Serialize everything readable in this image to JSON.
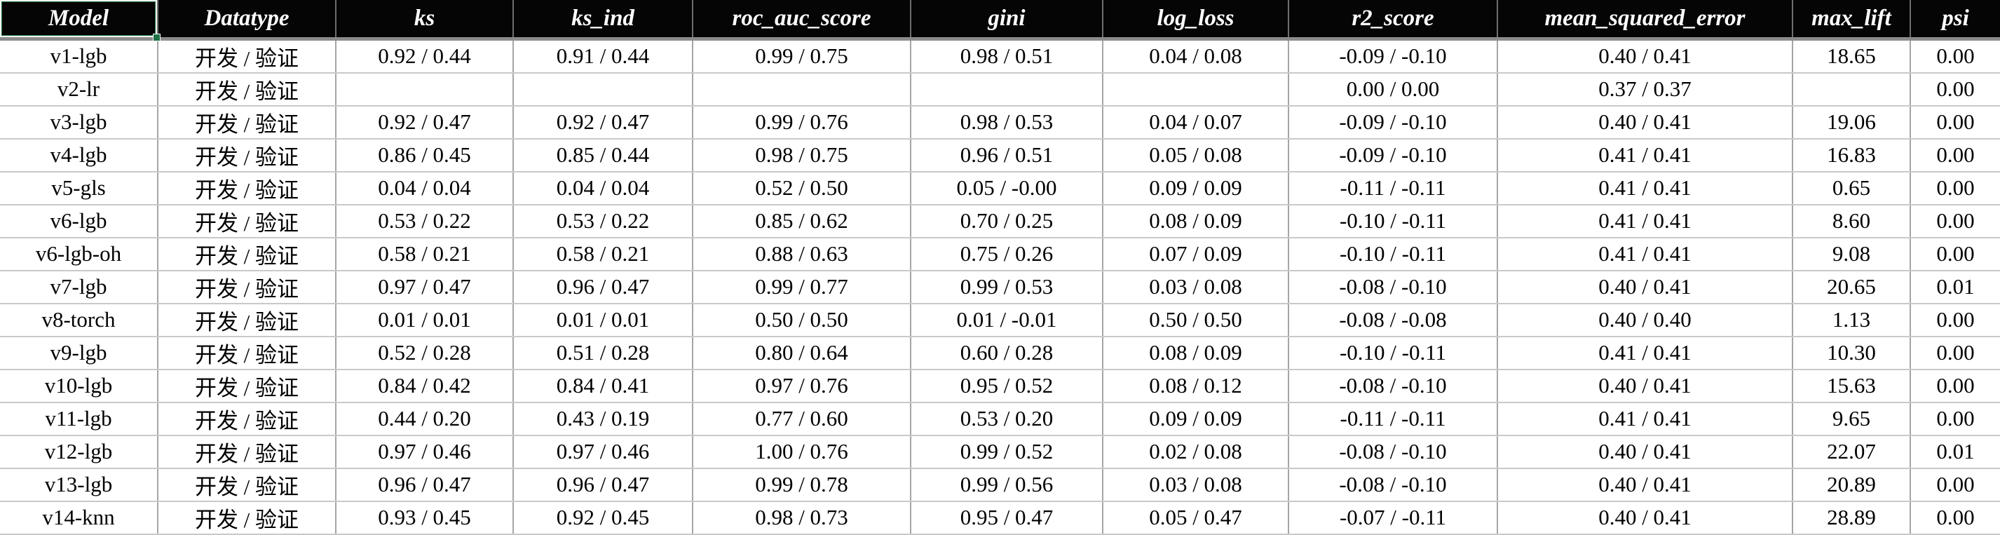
{
  "colors": {
    "header_background": "#000000",
    "header_text": "#ffffff",
    "cell_text": "#000000",
    "grid_vertical": "#a5a5a5",
    "grid_horizontal": "#c9c9c9",
    "header_bottom_border": "#8c8c8c",
    "selection_green": "#1e7145"
  },
  "table": {
    "selected_header": "Model",
    "columns": [
      {
        "key": "model",
        "label": "Model"
      },
      {
        "key": "datatype",
        "label": "Datatype"
      },
      {
        "key": "ks",
        "label": "ks"
      },
      {
        "key": "ks_ind",
        "label": "ks_ind"
      },
      {
        "key": "roc_auc_score",
        "label": "roc_auc_score"
      },
      {
        "key": "gini",
        "label": "gini"
      },
      {
        "key": "log_loss",
        "label": "log_loss"
      },
      {
        "key": "r2_score",
        "label": "r2_score"
      },
      {
        "key": "mean_squared_error",
        "label": "mean_squared_error"
      },
      {
        "key": "max_lift",
        "label": "max_lift"
      },
      {
        "key": "psi",
        "label": "psi"
      }
    ],
    "rows": [
      {
        "model": "v1-lgb",
        "datatype": "开发 / 验证",
        "ks": "0.92 / 0.44",
        "ks_ind": "0.91 / 0.44",
        "roc_auc_score": "0.99 / 0.75",
        "gini": "0.98 / 0.51",
        "log_loss": "0.04 / 0.08",
        "r2_score": "-0.09 / -0.10",
        "mean_squared_error": "0.40 / 0.41",
        "max_lift": "18.65",
        "psi": "0.00"
      },
      {
        "model": "v2-lr",
        "datatype": "开发 / 验证",
        "ks": "",
        "ks_ind": "",
        "roc_auc_score": "",
        "gini": "",
        "log_loss": "",
        "r2_score": "0.00 / 0.00",
        "mean_squared_error": "0.37 / 0.37",
        "max_lift": "",
        "psi": "0.00"
      },
      {
        "model": "v3-lgb",
        "datatype": "开发 / 验证",
        "ks": "0.92 / 0.47",
        "ks_ind": "0.92 / 0.47",
        "roc_auc_score": "0.99 / 0.76",
        "gini": "0.98 / 0.53",
        "log_loss": "0.04 / 0.07",
        "r2_score": "-0.09 / -0.10",
        "mean_squared_error": "0.40 / 0.41",
        "max_lift": "19.06",
        "psi": "0.00"
      },
      {
        "model": "v4-lgb",
        "datatype": "开发 / 验证",
        "ks": "0.86 / 0.45",
        "ks_ind": "0.85 / 0.44",
        "roc_auc_score": "0.98 / 0.75",
        "gini": "0.96 / 0.51",
        "log_loss": "0.05 / 0.08",
        "r2_score": "-0.09 / -0.10",
        "mean_squared_error": "0.41 / 0.41",
        "max_lift": "16.83",
        "psi": "0.00"
      },
      {
        "model": "v5-gls",
        "datatype": "开发 / 验证",
        "ks": "0.04 / 0.04",
        "ks_ind": "0.04 / 0.04",
        "roc_auc_score": "0.52 / 0.50",
        "gini": "0.05 / -0.00",
        "log_loss": "0.09 / 0.09",
        "r2_score": "-0.11 / -0.11",
        "mean_squared_error": "0.41 / 0.41",
        "max_lift": "0.65",
        "psi": "0.00"
      },
      {
        "model": "v6-lgb",
        "datatype": "开发 / 验证",
        "ks": "0.53 / 0.22",
        "ks_ind": "0.53 / 0.22",
        "roc_auc_score": "0.85 / 0.62",
        "gini": "0.70 / 0.25",
        "log_loss": "0.08 / 0.09",
        "r2_score": "-0.10 / -0.11",
        "mean_squared_error": "0.41 / 0.41",
        "max_lift": "8.60",
        "psi": "0.00"
      },
      {
        "model": "v6-lgb-oh",
        "datatype": "开发 / 验证",
        "ks": "0.58 / 0.21",
        "ks_ind": "0.58 / 0.21",
        "roc_auc_score": "0.88 / 0.63",
        "gini": "0.75 / 0.26",
        "log_loss": "0.07 / 0.09",
        "r2_score": "-0.10 / -0.11",
        "mean_squared_error": "0.41 / 0.41",
        "max_lift": "9.08",
        "psi": "0.00"
      },
      {
        "model": "v7-lgb",
        "datatype": "开发 / 验证",
        "ks": "0.97 / 0.47",
        "ks_ind": "0.96 / 0.47",
        "roc_auc_score": "0.99 / 0.77",
        "gini": "0.99 / 0.53",
        "log_loss": "0.03 / 0.08",
        "r2_score": "-0.08 / -0.10",
        "mean_squared_error": "0.40 / 0.41",
        "max_lift": "20.65",
        "psi": "0.01"
      },
      {
        "model": "v8-torch",
        "datatype": "开发 / 验证",
        "ks": "0.01 / 0.01",
        "ks_ind": "0.01 / 0.01",
        "roc_auc_score": "0.50 / 0.50",
        "gini": "0.01 / -0.01",
        "log_loss": "0.50 / 0.50",
        "r2_score": "-0.08 / -0.08",
        "mean_squared_error": "0.40 / 0.40",
        "max_lift": "1.13",
        "psi": "0.00"
      },
      {
        "model": "v9-lgb",
        "datatype": "开发 / 验证",
        "ks": "0.52 / 0.28",
        "ks_ind": "0.51 / 0.28",
        "roc_auc_score": "0.80 / 0.64",
        "gini": "0.60 / 0.28",
        "log_loss": "0.08 / 0.09",
        "r2_score": "-0.10 / -0.11",
        "mean_squared_error": "0.41 / 0.41",
        "max_lift": "10.30",
        "psi": "0.00"
      },
      {
        "model": "v10-lgb",
        "datatype": "开发 / 验证",
        "ks": "0.84 / 0.42",
        "ks_ind": "0.84 / 0.41",
        "roc_auc_score": "0.97 / 0.76",
        "gini": "0.95 / 0.52",
        "log_loss": "0.08 / 0.12",
        "r2_score": "-0.08 / -0.10",
        "mean_squared_error": "0.40 / 0.41",
        "max_lift": "15.63",
        "psi": "0.00"
      },
      {
        "model": "v11-lgb",
        "datatype": "开发 / 验证",
        "ks": "0.44 / 0.20",
        "ks_ind": "0.43 / 0.19",
        "roc_auc_score": "0.77 / 0.60",
        "gini": "0.53 / 0.20",
        "log_loss": "0.09 / 0.09",
        "r2_score": "-0.11 / -0.11",
        "mean_squared_error": "0.41 / 0.41",
        "max_lift": "9.65",
        "psi": "0.00"
      },
      {
        "model": "v12-lgb",
        "datatype": "开发 / 验证",
        "ks": "0.97 / 0.46",
        "ks_ind": "0.97 / 0.46",
        "roc_auc_score": "1.00 / 0.76",
        "gini": "0.99 / 0.52",
        "log_loss": "0.02 / 0.08",
        "r2_score": "-0.08 / -0.10",
        "mean_squared_error": "0.40 / 0.41",
        "max_lift": "22.07",
        "psi": "0.01"
      },
      {
        "model": "v13-lgb",
        "datatype": "开发 / 验证",
        "ks": "0.96 / 0.47",
        "ks_ind": "0.96 / 0.47",
        "roc_auc_score": "0.99 / 0.78",
        "gini": "0.99 / 0.56",
        "log_loss": "0.03 / 0.08",
        "r2_score": "-0.08 / -0.10",
        "mean_squared_error": "0.40 / 0.41",
        "max_lift": "20.89",
        "psi": "0.00"
      },
      {
        "model": "v14-knn",
        "datatype": "开发 / 验证",
        "ks": "0.93 / 0.45",
        "ks_ind": "0.92 / 0.45",
        "roc_auc_score": "0.98 / 0.73",
        "gini": "0.95 / 0.47",
        "log_loss": "0.05 / 0.47",
        "r2_score": "-0.07 / -0.11",
        "mean_squared_error": "0.40 / 0.41",
        "max_lift": "28.89",
        "psi": "0.00"
      }
    ]
  }
}
